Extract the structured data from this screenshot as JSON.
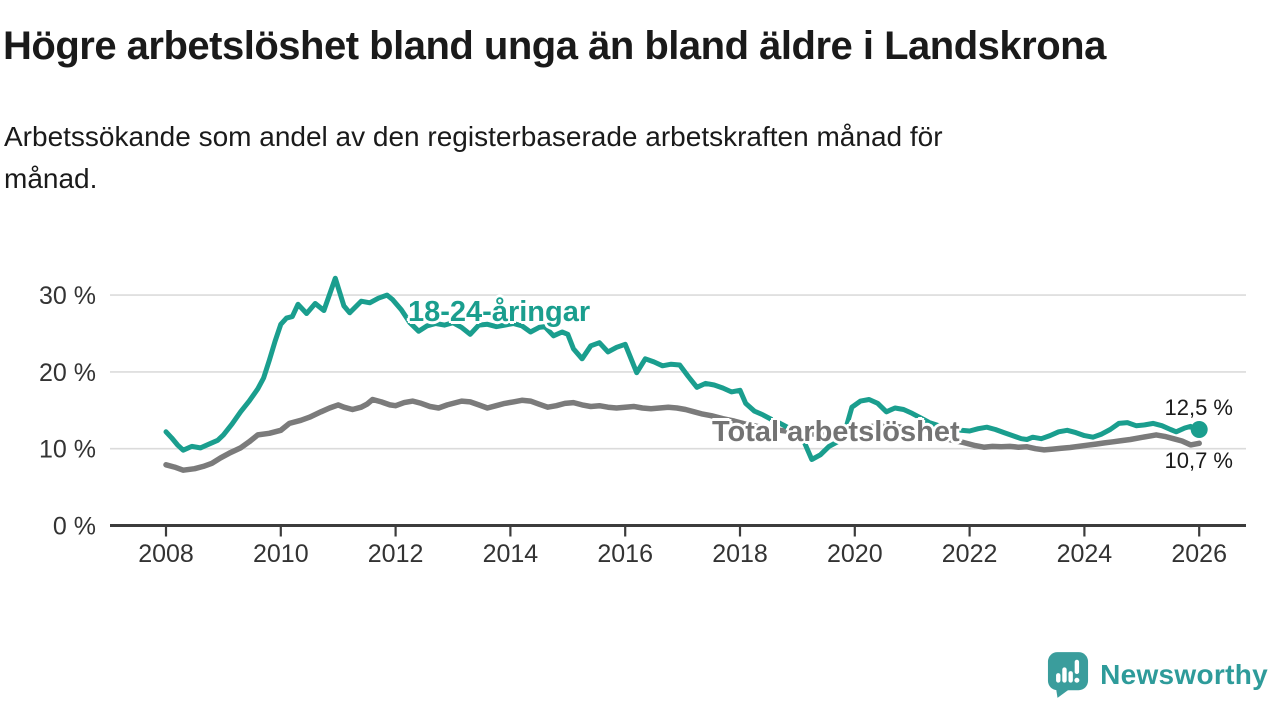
{
  "header": {
    "title": "Högre arbetslöshet bland unga än bland äldre i Landskrona",
    "subtitle_lines": [
      "Arbetssökande som andel av den registerbaserade arbetskraften månad för",
      "månad."
    ]
  },
  "chart_data": {
    "type": "line",
    "title": "Högre arbetslöshet bland unga än bland äldre i Landskrona",
    "subtitle": "Arbetssökande som andel av den registerbaserade arbetskraften månad för månad.",
    "unit": "%",
    "grid": "horizontal",
    "x_axis": {
      "range": [
        2007.9,
        2026.8
      ],
      "ticks": [
        {
          "value": 2008,
          "label": "2008"
        },
        {
          "value": 2010,
          "label": "2010"
        },
        {
          "value": 2012,
          "label": "2012"
        },
        {
          "value": 2014,
          "label": "2014"
        },
        {
          "value": 2016,
          "label": "2016"
        },
        {
          "value": 2018,
          "label": "2018"
        },
        {
          "value": 2020,
          "label": "2020"
        },
        {
          "value": 2022,
          "label": "2022"
        },
        {
          "value": 2024,
          "label": "2024"
        },
        {
          "value": 2026,
          "label": "2026"
        }
      ]
    },
    "y_axis": {
      "range": [
        0,
        33
      ],
      "ticks": [
        {
          "value": 0,
          "label": "0 %"
        },
        {
          "value": 10,
          "label": "10 %"
        },
        {
          "value": 20,
          "label": "20 %"
        },
        {
          "value": 30,
          "label": "30 %"
        }
      ]
    },
    "series": [
      {
        "id": "youth",
        "name": "18-24-åringar",
        "color": "#1A9E8E",
        "end_label": "12,5 %",
        "end_value": 12.5,
        "end_dot": true,
        "points": [
          [
            2008.0,
            12.2
          ],
          [
            2008.1,
            11.4
          ],
          [
            2008.2,
            10.5
          ],
          [
            2008.3,
            9.8
          ],
          [
            2008.45,
            10.3
          ],
          [
            2008.6,
            10.1
          ],
          [
            2008.75,
            10.6
          ],
          [
            2008.9,
            11.1
          ],
          [
            2009.0,
            11.8
          ],
          [
            2009.15,
            13.2
          ],
          [
            2009.3,
            14.8
          ],
          [
            2009.45,
            16.2
          ],
          [
            2009.6,
            17.8
          ],
          [
            2009.7,
            19.2
          ],
          [
            2009.8,
            21.5
          ],
          [
            2009.9,
            24.0
          ],
          [
            2010.0,
            26.2
          ],
          [
            2010.1,
            27.0
          ],
          [
            2010.2,
            27.2
          ],
          [
            2010.3,
            28.8
          ],
          [
            2010.45,
            27.6
          ],
          [
            2010.6,
            28.9
          ],
          [
            2010.75,
            28.0
          ],
          [
            2010.95,
            32.2
          ],
          [
            2011.1,
            28.6
          ],
          [
            2011.2,
            27.7
          ],
          [
            2011.4,
            29.2
          ],
          [
            2011.55,
            29.0
          ],
          [
            2011.7,
            29.6
          ],
          [
            2011.85,
            30.0
          ],
          [
            2011.95,
            29.4
          ],
          [
            2012.1,
            28.1
          ],
          [
            2012.25,
            26.4
          ],
          [
            2012.4,
            25.3
          ],
          [
            2012.55,
            26.0
          ],
          [
            2012.7,
            26.3
          ],
          [
            2012.85,
            26.1
          ],
          [
            2013.0,
            26.4
          ],
          [
            2013.15,
            25.8
          ],
          [
            2013.3,
            24.9
          ],
          [
            2013.45,
            26.1
          ],
          [
            2013.6,
            26.2
          ],
          [
            2013.75,
            25.9
          ],
          [
            2013.9,
            26.1
          ],
          [
            2014.05,
            26.3
          ],
          [
            2014.2,
            26.0
          ],
          [
            2014.35,
            25.2
          ],
          [
            2014.5,
            25.8
          ],
          [
            2014.6,
            25.9
          ],
          [
            2014.75,
            24.7
          ],
          [
            2014.9,
            25.2
          ],
          [
            2015.0,
            24.9
          ],
          [
            2015.1,
            23.0
          ],
          [
            2015.25,
            21.7
          ],
          [
            2015.4,
            23.4
          ],
          [
            2015.55,
            23.8
          ],
          [
            2015.7,
            22.6
          ],
          [
            2015.85,
            23.2
          ],
          [
            2016.0,
            23.6
          ],
          [
            2016.2,
            19.9
          ],
          [
            2016.35,
            21.7
          ],
          [
            2016.5,
            21.3
          ],
          [
            2016.65,
            20.8
          ],
          [
            2016.8,
            21.0
          ],
          [
            2016.95,
            20.9
          ],
          [
            2017.1,
            19.4
          ],
          [
            2017.25,
            18.0
          ],
          [
            2017.4,
            18.5
          ],
          [
            2017.55,
            18.3
          ],
          [
            2017.7,
            17.9
          ],
          [
            2017.85,
            17.4
          ],
          [
            2018.0,
            17.6
          ],
          [
            2018.1,
            15.9
          ],
          [
            2018.25,
            14.9
          ],
          [
            2018.4,
            14.4
          ],
          [
            2018.55,
            13.8
          ],
          [
            2018.7,
            13.3
          ],
          [
            2018.85,
            12.7
          ],
          [
            2019.0,
            12.1
          ],
          [
            2019.1,
            11.2
          ],
          [
            2019.25,
            8.6
          ],
          [
            2019.4,
            9.2
          ],
          [
            2019.55,
            10.3
          ],
          [
            2019.7,
            10.9
          ],
          [
            2019.85,
            12.8
          ],
          [
            2019.95,
            15.4
          ],
          [
            2020.1,
            16.2
          ],
          [
            2020.25,
            16.4
          ],
          [
            2020.4,
            15.9
          ],
          [
            2020.55,
            14.8
          ],
          [
            2020.7,
            15.3
          ],
          [
            2020.85,
            15.1
          ],
          [
            2021.0,
            14.6
          ],
          [
            2021.15,
            14.0
          ],
          [
            2021.3,
            13.4
          ],
          [
            2021.5,
            12.9
          ],
          [
            2021.7,
            12.6
          ],
          [
            2021.85,
            12.4
          ],
          [
            2022.0,
            12.3
          ],
          [
            2022.15,
            12.6
          ],
          [
            2022.3,
            12.8
          ],
          [
            2022.45,
            12.5
          ],
          [
            2022.6,
            12.1
          ],
          [
            2022.75,
            11.7
          ],
          [
            2022.9,
            11.3
          ],
          [
            2023.0,
            11.2
          ],
          [
            2023.1,
            11.5
          ],
          [
            2023.25,
            11.3
          ],
          [
            2023.4,
            11.7
          ],
          [
            2023.55,
            12.2
          ],
          [
            2023.7,
            12.4
          ],
          [
            2023.85,
            12.1
          ],
          [
            2024.0,
            11.7
          ],
          [
            2024.15,
            11.5
          ],
          [
            2024.3,
            11.9
          ],
          [
            2024.45,
            12.5
          ],
          [
            2024.6,
            13.3
          ],
          [
            2024.75,
            13.4
          ],
          [
            2024.9,
            13.0
          ],
          [
            2025.05,
            13.1
          ],
          [
            2025.2,
            13.3
          ],
          [
            2025.35,
            13.0
          ],
          [
            2025.5,
            12.5
          ],
          [
            2025.6,
            12.2
          ],
          [
            2025.75,
            12.7
          ],
          [
            2025.85,
            12.9
          ],
          [
            2025.95,
            12.3
          ],
          [
            2026.0,
            12.5
          ]
        ]
      },
      {
        "id": "total",
        "name": "Total arbetslöshet",
        "color": "#7B7B7B",
        "end_label": "10,7 %",
        "end_value": 10.7,
        "end_dot": false,
        "points": [
          [
            2008.0,
            7.9
          ],
          [
            2008.15,
            7.6
          ],
          [
            2008.3,
            7.2
          ],
          [
            2008.5,
            7.4
          ],
          [
            2008.65,
            7.7
          ],
          [
            2008.8,
            8.1
          ],
          [
            2008.95,
            8.8
          ],
          [
            2009.1,
            9.4
          ],
          [
            2009.3,
            10.1
          ],
          [
            2009.45,
            10.9
          ],
          [
            2009.6,
            11.8
          ],
          [
            2009.8,
            12.0
          ],
          [
            2010.0,
            12.4
          ],
          [
            2010.15,
            13.3
          ],
          [
            2010.35,
            13.7
          ],
          [
            2010.5,
            14.1
          ],
          [
            2010.7,
            14.8
          ],
          [
            2010.85,
            15.3
          ],
          [
            2011.0,
            15.7
          ],
          [
            2011.1,
            15.4
          ],
          [
            2011.25,
            15.1
          ],
          [
            2011.4,
            15.4
          ],
          [
            2011.5,
            15.8
          ],
          [
            2011.6,
            16.4
          ],
          [
            2011.75,
            16.1
          ],
          [
            2011.9,
            15.7
          ],
          [
            2012.0,
            15.6
          ],
          [
            2012.15,
            16.0
          ],
          [
            2012.3,
            16.2
          ],
          [
            2012.45,
            15.9
          ],
          [
            2012.6,
            15.5
          ],
          [
            2012.75,
            15.3
          ],
          [
            2012.9,
            15.7
          ],
          [
            2013.0,
            15.9
          ],
          [
            2013.15,
            16.2
          ],
          [
            2013.3,
            16.1
          ],
          [
            2013.45,
            15.7
          ],
          [
            2013.6,
            15.3
          ],
          [
            2013.75,
            15.6
          ],
          [
            2013.9,
            15.9
          ],
          [
            2014.05,
            16.1
          ],
          [
            2014.2,
            16.3
          ],
          [
            2014.35,
            16.2
          ],
          [
            2014.5,
            15.8
          ],
          [
            2014.65,
            15.4
          ],
          [
            2014.8,
            15.6
          ],
          [
            2014.95,
            15.9
          ],
          [
            2015.1,
            16.0
          ],
          [
            2015.25,
            15.7
          ],
          [
            2015.4,
            15.5
          ],
          [
            2015.55,
            15.6
          ],
          [
            2015.7,
            15.4
          ],
          [
            2015.85,
            15.3
          ],
          [
            2016.0,
            15.4
          ],
          [
            2016.15,
            15.5
          ],
          [
            2016.3,
            15.3
          ],
          [
            2016.45,
            15.2
          ],
          [
            2016.6,
            15.3
          ],
          [
            2016.75,
            15.4
          ],
          [
            2016.9,
            15.3
          ],
          [
            2017.05,
            15.1
          ],
          [
            2017.2,
            14.8
          ],
          [
            2017.35,
            14.5
          ],
          [
            2017.5,
            14.3
          ],
          [
            2017.7,
            13.9
          ],
          [
            2017.9,
            13.6
          ],
          [
            2018.1,
            13.2
          ],
          [
            2018.3,
            12.9
          ],
          [
            2018.5,
            12.6
          ],
          [
            2018.7,
            12.4
          ],
          [
            2018.9,
            12.2
          ],
          [
            2019.1,
            12.0
          ],
          [
            2019.3,
            11.9
          ],
          [
            2019.5,
            11.8
          ],
          [
            2019.7,
            11.9
          ],
          [
            2019.9,
            12.1
          ],
          [
            2020.1,
            12.5
          ],
          [
            2020.3,
            12.9
          ],
          [
            2020.5,
            13.0
          ],
          [
            2020.7,
            12.9
          ],
          [
            2020.9,
            12.7
          ],
          [
            2021.1,
            12.3
          ],
          [
            2021.3,
            11.9
          ],
          [
            2021.5,
            11.5
          ],
          [
            2021.7,
            11.1
          ],
          [
            2021.9,
            10.8
          ],
          [
            2022.1,
            10.4
          ],
          [
            2022.25,
            10.2
          ],
          [
            2022.4,
            10.3
          ],
          [
            2022.55,
            10.25
          ],
          [
            2022.7,
            10.3
          ],
          [
            2022.85,
            10.2
          ],
          [
            2023.0,
            10.25
          ],
          [
            2023.15,
            10.0
          ],
          [
            2023.3,
            9.85
          ],
          [
            2023.45,
            9.95
          ],
          [
            2023.6,
            10.05
          ],
          [
            2023.75,
            10.15
          ],
          [
            2023.9,
            10.3
          ],
          [
            2024.05,
            10.45
          ],
          [
            2024.2,
            10.6
          ],
          [
            2024.35,
            10.75
          ],
          [
            2024.5,
            10.9
          ],
          [
            2024.65,
            11.05
          ],
          [
            2024.8,
            11.2
          ],
          [
            2024.95,
            11.4
          ],
          [
            2025.1,
            11.6
          ],
          [
            2025.25,
            11.8
          ],
          [
            2025.4,
            11.6
          ],
          [
            2025.55,
            11.3
          ],
          [
            2025.7,
            11.0
          ],
          [
            2025.85,
            10.5
          ],
          [
            2026.0,
            10.7
          ]
        ]
      }
    ],
    "legend_position": "inline-labels"
  },
  "branding": {
    "name": "Newsworthy",
    "logo_icon": "speech-bubble-bar-chart",
    "icon_color": "#3A9D9C",
    "text_color": "#2E9B9A"
  }
}
